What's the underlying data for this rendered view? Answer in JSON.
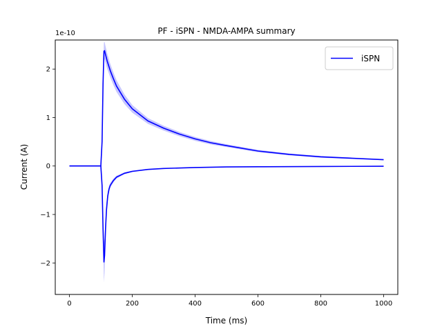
{
  "chart_data": {
    "type": "line",
    "title": "PF - iSPN - NMDA-AMPA summary",
    "xlabel": "Time (ms)",
    "ylabel": "Current (A)",
    "y_offset_label": "1e-10",
    "xlim": [
      -45,
      1045
    ],
    "ylim": [
      -2.65,
      2.6
    ],
    "x_ticks": [
      0,
      200,
      400,
      600,
      800,
      1000
    ],
    "x_tick_labels": [
      "0",
      "200",
      "400",
      "600",
      "800",
      "1000"
    ],
    "y_ticks": [
      -2,
      -1,
      0,
      1,
      2
    ],
    "y_tick_labels": [
      "−2",
      "−1",
      "0",
      "1",
      "2"
    ],
    "grid": false,
    "legend": {
      "placement": "top-right",
      "entries": [
        "iSPN"
      ]
    },
    "colors": {
      "line": "#0000ff",
      "band": "#8080ff"
    },
    "series": [
      {
        "name": "iSPN",
        "component": "NMDA (positive)",
        "x": [
          0,
          50,
          100,
          104,
          107,
          110,
          112,
          115,
          120,
          130,
          140,
          150,
          175,
          200,
          250,
          300,
          350,
          400,
          450,
          500,
          600,
          700,
          800,
          900,
          1000
        ],
        "y": [
          0,
          0,
          0,
          0.5,
          1.7,
          2.37,
          2.38,
          2.3,
          2.17,
          1.97,
          1.8,
          1.65,
          1.38,
          1.18,
          0.93,
          0.78,
          0.66,
          0.56,
          0.48,
          0.42,
          0.31,
          0.24,
          0.19,
          0.16,
          0.13
        ],
        "band": [
          0,
          0,
          0,
          0.05,
          0.15,
          0.18,
          0.18,
          0.17,
          0.16,
          0.14,
          0.13,
          0.12,
          0.1,
          0.08,
          0.06,
          0.05,
          0.045,
          0.04,
          0.035,
          0.03,
          0.025,
          0.02,
          0.018,
          0.015,
          0.012
        ]
      },
      {
        "name": "iSPN",
        "component": "AMPA (negative)",
        "x": [
          0,
          50,
          100,
          104,
          107,
          110,
          112,
          115,
          118,
          122,
          126,
          130,
          140,
          150,
          175,
          200,
          250,
          300,
          400,
          500,
          600,
          800,
          1000
        ],
        "y": [
          0,
          0,
          0,
          -0.4,
          -1.3,
          -1.98,
          -1.85,
          -1.3,
          -0.9,
          -0.62,
          -0.48,
          -0.4,
          -0.3,
          -0.23,
          -0.15,
          -0.11,
          -0.07,
          -0.05,
          -0.03,
          -0.02,
          -0.015,
          -0.01,
          -0.005
        ],
        "band": [
          0,
          0,
          0,
          0.08,
          0.25,
          0.42,
          0.35,
          0.22,
          0.15,
          0.1,
          0.07,
          0.05,
          0.04,
          0.03,
          0.02,
          0.015,
          0.01,
          0.008,
          0.006,
          0.005,
          0.004,
          0.003,
          0.003
        ]
      }
    ]
  }
}
